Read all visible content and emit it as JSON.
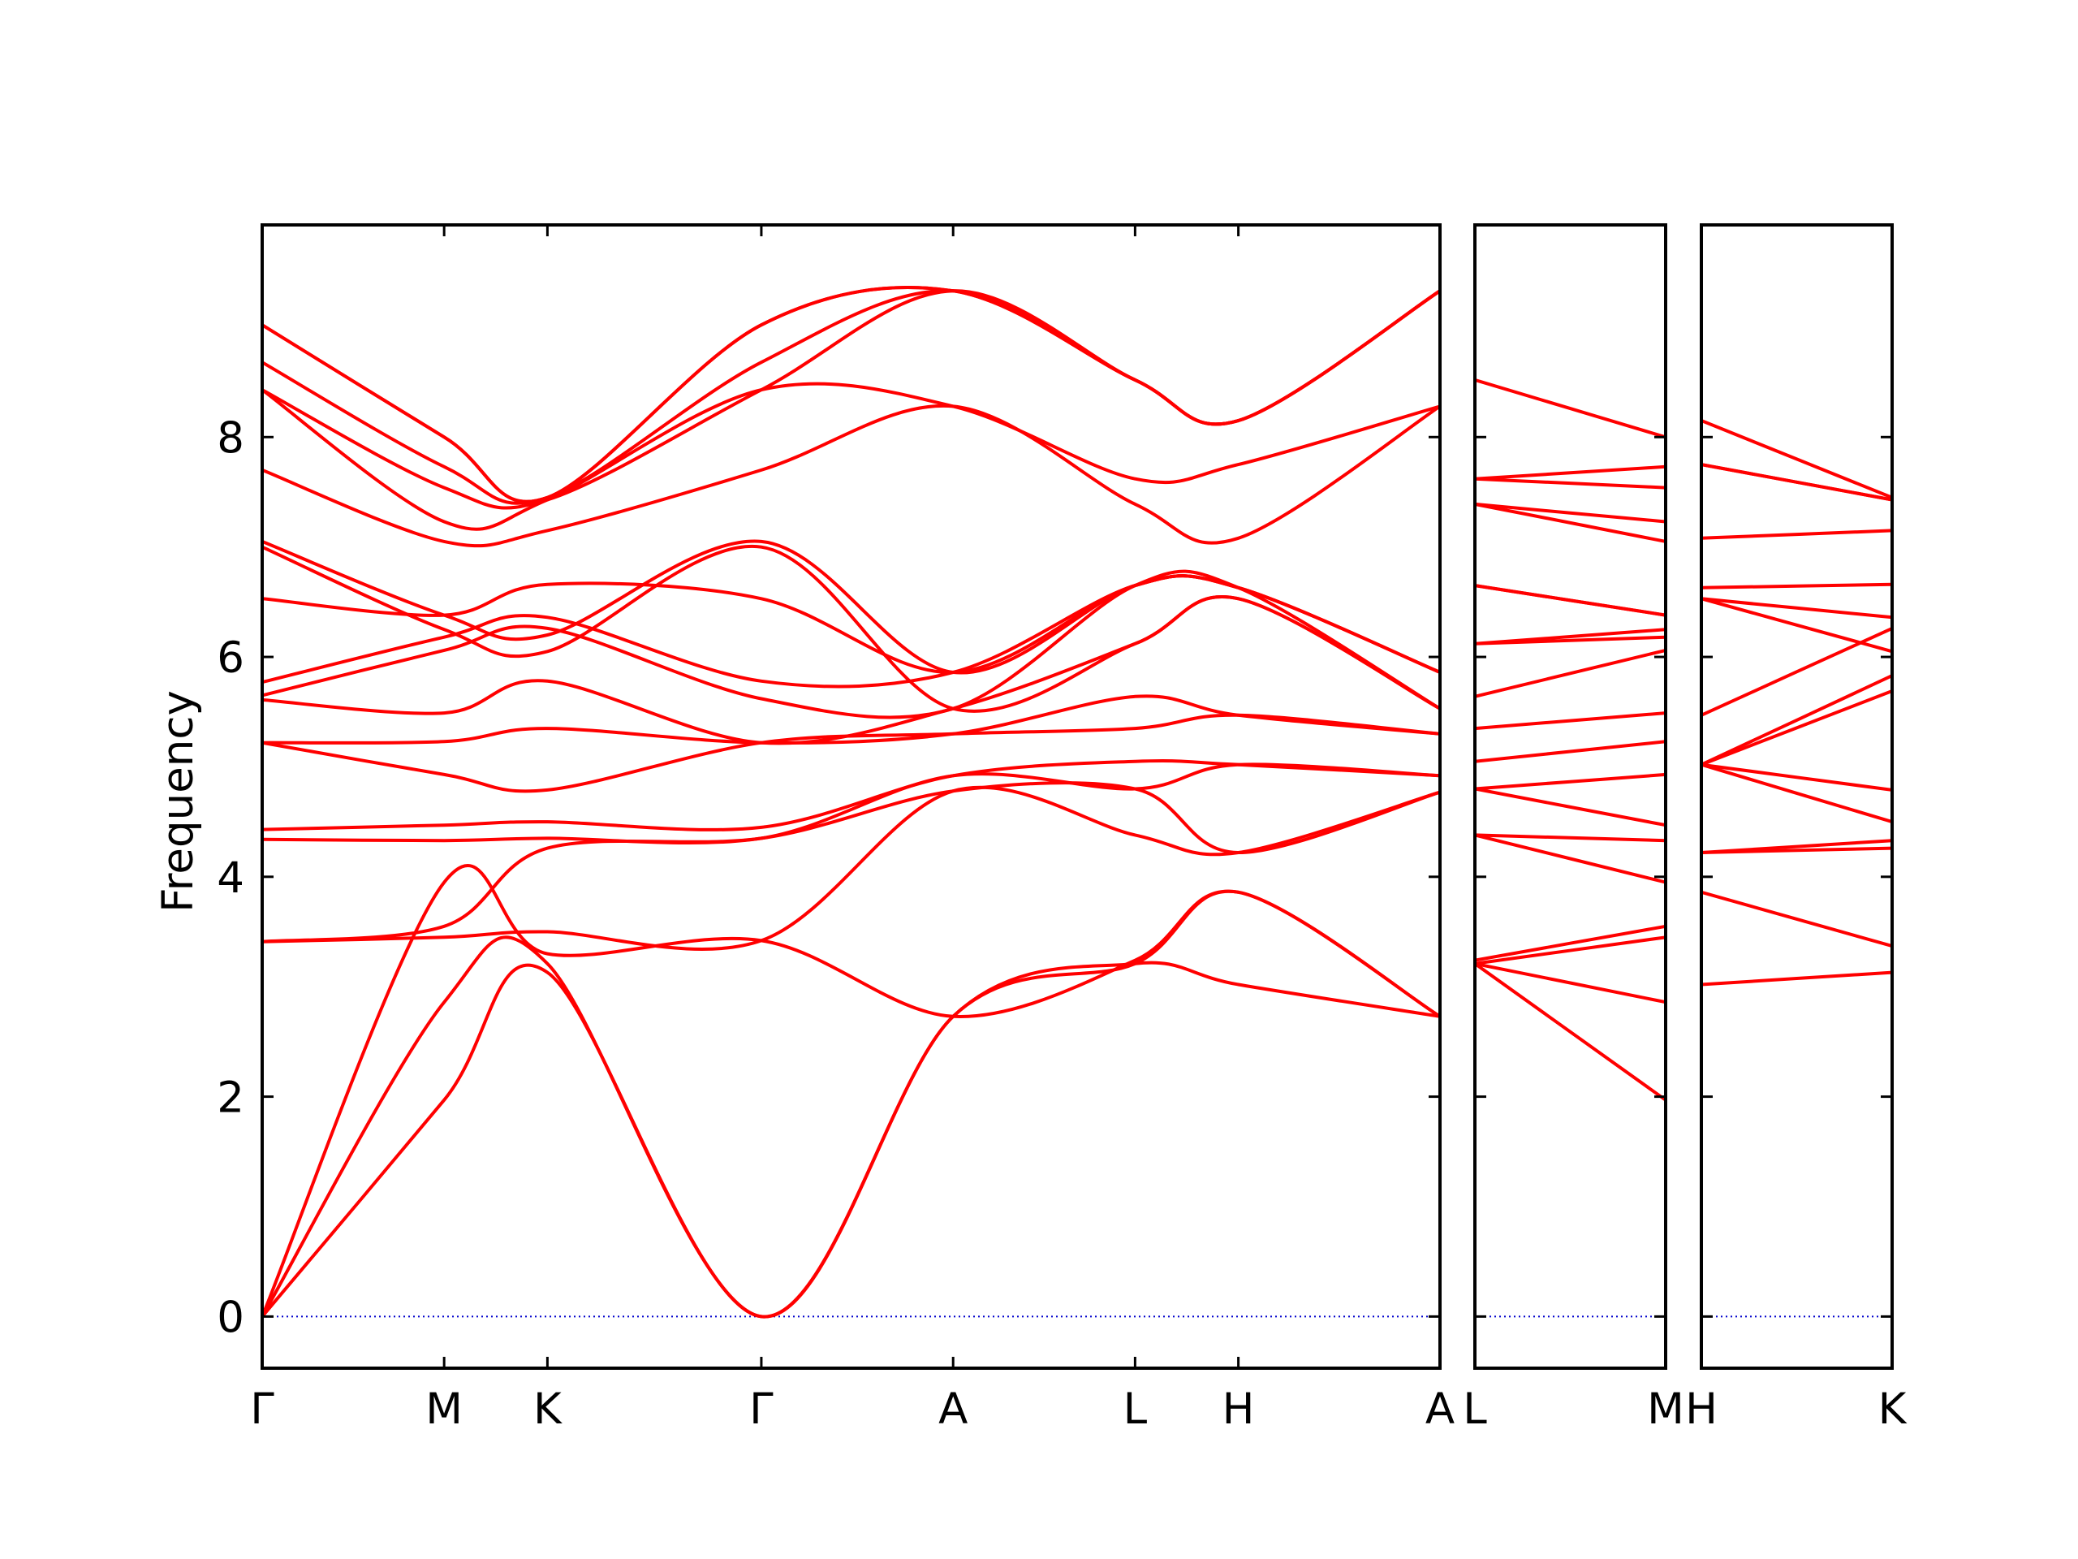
{
  "chart_data": {
    "type": "line",
    "ylabel": "Frequency",
    "ylim": [
      -0.47,
      9.93
    ],
    "yticks": [
      0,
      2,
      4,
      6,
      8
    ],
    "ytick_labels": [
      "0",
      "2",
      "4",
      "6",
      "8"
    ],
    "grid": false,
    "line_color": "#ff0000",
    "zero_line_color": "#0000cc",
    "panels": [
      {
        "segments": [
          "Γ-M",
          "M-K",
          "K-Γ",
          "Γ-A",
          "A-L",
          "L-H",
          "H-A"
        ],
        "x_range": [
          0,
          4.79
        ],
        "ticks": [
          {
            "x": 0.0,
            "label": "Γ"
          },
          {
            "x": 0.74,
            "label": "M"
          },
          {
            "x": 1.16,
            "label": "K"
          },
          {
            "x": 2.03,
            "label": "Γ"
          },
          {
            "x": 2.81,
            "label": "A"
          },
          {
            "x": 3.55,
            "label": "L"
          },
          {
            "x": 3.97,
            "label": "H"
          },
          {
            "x": 4.79,
            "label": "A"
          }
        ],
        "bands": [
          [
            [
              0,
              0
            ],
            [
              0.74,
              1.97
            ],
            [
              1.16,
              3.13
            ],
            [
              2.03,
              0
            ],
            [
              2.81,
              2.73
            ],
            [
              3.55,
              3.21
            ],
            [
              3.97,
              3.02
            ],
            [
              4.79,
              2.73
            ]
          ],
          [
            [
              0,
              0
            ],
            [
              0.74,
              2.86
            ],
            [
              1.16,
              3.21
            ],
            [
              2.03,
              0
            ],
            [
              2.81,
              2.73
            ],
            [
              3.55,
              3.21
            ],
            [
              3.97,
              3.86
            ],
            [
              4.79,
              2.73
            ]
          ],
          [
            [
              0,
              0
            ],
            [
              0.74,
              3.95
            ],
            [
              1.16,
              3.3
            ],
            [
              2.03,
              3.42
            ],
            [
              2.81,
              2.73
            ],
            [
              3.55,
              3.24
            ],
            [
              3.97,
              3.86
            ],
            [
              4.79,
              2.73
            ]
          ],
          [
            [
              0,
              3.41
            ],
            [
              0.74,
              3.45
            ],
            [
              1.16,
              3.5
            ],
            [
              2.03,
              3.42
            ],
            [
              2.81,
              4.78
            ],
            [
              3.55,
              4.38
            ],
            [
              3.97,
              4.22
            ],
            [
              4.79,
              4.77
            ]
          ],
          [
            [
              0,
              3.41
            ],
            [
              0.74,
              3.55
            ],
            [
              1.16,
              4.26
            ],
            [
              2.03,
              4.35
            ],
            [
              2.81,
              4.78
            ],
            [
              3.55,
              4.8
            ],
            [
              3.97,
              4.22
            ],
            [
              4.79,
              4.77
            ]
          ],
          [
            [
              0,
              4.34
            ],
            [
              0.74,
              4.33
            ],
            [
              1.16,
              4.35
            ],
            [
              2.03,
              4.35
            ],
            [
              2.81,
              4.92
            ],
            [
              3.55,
              4.8
            ],
            [
              3.97,
              5.02
            ],
            [
              4.79,
              4.92
            ]
          ],
          [
            [
              0,
              4.43
            ],
            [
              0.74,
              4.47
            ],
            [
              1.16,
              4.5
            ],
            [
              2.03,
              4.45
            ],
            [
              2.81,
              4.92
            ],
            [
              3.55,
              5.05
            ],
            [
              3.97,
              5.02
            ],
            [
              4.79,
              4.92
            ]
          ],
          [
            [
              0,
              5.22
            ],
            [
              0.74,
              4.93
            ],
            [
              1.16,
              4.79
            ],
            [
              2.03,
              5.22
            ],
            [
              2.81,
              5.3
            ],
            [
              3.55,
              5.35
            ],
            [
              3.97,
              5.47
            ],
            [
              4.79,
              5.3
            ]
          ],
          [
            [
              0,
              5.22
            ],
            [
              0.74,
              5.23
            ],
            [
              1.16,
              5.35
            ],
            [
              2.03,
              5.22
            ],
            [
              2.81,
              5.3
            ],
            [
              3.55,
              5.64
            ],
            [
              3.97,
              5.47
            ],
            [
              4.79,
              5.3
            ]
          ],
          [
            [
              0,
              5.61
            ],
            [
              0.74,
              5.49
            ],
            [
              1.16,
              5.78
            ],
            [
              2.03,
              5.22
            ],
            [
              2.81,
              5.53
            ],
            [
              3.55,
              6.12
            ],
            [
              3.97,
              6.53
            ],
            [
              4.79,
              5.53
            ]
          ],
          [
            [
              0,
              5.65
            ],
            [
              0.74,
              6.06
            ],
            [
              1.16,
              6.26
            ],
            [
              2.03,
              5.62
            ],
            [
              2.81,
              5.53
            ],
            [
              3.55,
              6.65
            ],
            [
              3.97,
              6.63
            ],
            [
              4.79,
              5.53
            ]
          ],
          [
            [
              0,
              5.77
            ],
            [
              0.74,
              6.18
            ],
            [
              1.16,
              6.36
            ],
            [
              2.03,
              5.78
            ],
            [
              2.81,
              5.86
            ],
            [
              3.55,
              6.65
            ],
            [
              3.97,
              6.63
            ],
            [
              4.79,
              5.86
            ]
          ],
          [
            [
              0,
              6.53
            ],
            [
              0.74,
              6.38
            ],
            [
              1.16,
              6.66
            ],
            [
              2.03,
              6.53
            ],
            [
              2.81,
              5.86
            ],
            [
              3.55,
              6.65
            ],
            [
              3.97,
              6.63
            ],
            [
              4.79,
              5.86
            ]
          ],
          [
            [
              0,
              7.05
            ],
            [
              0.74,
              6.38
            ],
            [
              1.16,
              6.2
            ],
            [
              2.03,
              7.05
            ],
            [
              2.81,
              5.86
            ],
            [
              3.55,
              6.65
            ],
            [
              3.97,
              6.63
            ],
            [
              4.79,
              5.86
            ]
          ],
          [
            [
              0,
              7.0
            ],
            [
              0.74,
              6.25
            ],
            [
              1.16,
              6.05
            ],
            [
              2.03,
              7.0
            ],
            [
              2.81,
              5.53
            ],
            [
              3.55,
              6.12
            ],
            [
              3.97,
              6.53
            ],
            [
              4.79,
              5.53
            ]
          ],
          [
            [
              0,
              7.7
            ],
            [
              0.74,
              7.05
            ],
            [
              1.16,
              7.15
            ],
            [
              2.03,
              7.7
            ],
            [
              2.81,
              8.28
            ],
            [
              3.55,
              7.39
            ],
            [
              3.97,
              7.08
            ],
            [
              4.79,
              8.28
            ]
          ],
          [
            [
              0,
              8.43
            ],
            [
              0.74,
              7.23
            ],
            [
              1.16,
              7.43
            ],
            [
              2.03,
              8.43
            ],
            [
              2.81,
              8.28
            ],
            [
              3.55,
              7.62
            ],
            [
              3.97,
              7.75
            ],
            [
              4.79,
              8.28
            ]
          ],
          [
            [
              0,
              8.43
            ],
            [
              0.74,
              7.54
            ],
            [
              1.16,
              7.43
            ],
            [
              2.03,
              8.43
            ],
            [
              2.81,
              9.33
            ],
            [
              3.55,
              8.52
            ],
            [
              3.97,
              8.15
            ],
            [
              4.79,
              9.33
            ]
          ],
          [
            [
              0,
              8.68
            ],
            [
              0.74,
              7.73
            ],
            [
              1.16,
              7.45
            ],
            [
              2.03,
              8.68
            ],
            [
              2.81,
              9.33
            ],
            [
              3.55,
              8.52
            ],
            [
              3.97,
              8.15
            ],
            [
              4.79,
              9.33
            ]
          ],
          [
            [
              0,
              9.02
            ],
            [
              0.74,
              8.0
            ],
            [
              1.16,
              7.45
            ],
            [
              2.03,
              9.02
            ],
            [
              2.81,
              9.33
            ],
            [
              3.55,
              8.52
            ],
            [
              3.97,
              8.15
            ],
            [
              4.79,
              9.33
            ]
          ],
          [
            [
              0,
              9.02
            ],
            [
              0.74,
              8.0
            ],
            [
              1.16,
              7.45
            ],
            [
              2.03,
              9.02
            ],
            [
              2.81,
              9.33
            ],
            [
              3.55,
              8.52
            ],
            [
              3.97,
              8.15
            ],
            [
              4.79,
              9.33
            ]
          ]
        ]
      },
      {
        "segments": [
          "L-M"
        ],
        "x_range": [
          0,
          0.78
        ],
        "ticks": [
          {
            "x": 0.0,
            "label": "L"
          },
          {
            "x": 0.78,
            "label": "M"
          }
        ],
        "bands": [
          [
            [
              0,
              3.21
            ],
            [
              0.78,
              1.97
            ]
          ],
          [
            [
              0,
              3.21
            ],
            [
              0.78,
              2.86
            ]
          ],
          [
            [
              0,
              3.21
            ],
            [
              0.78,
              3.45
            ]
          ],
          [
            [
              0,
              3.24
            ],
            [
              0.78,
              3.55
            ]
          ],
          [
            [
              0,
              4.38
            ],
            [
              0.78,
              3.95
            ]
          ],
          [
            [
              0,
              4.38
            ],
            [
              0.78,
              4.33
            ]
          ],
          [
            [
              0,
              4.8
            ],
            [
              0.78,
              4.47
            ]
          ],
          [
            [
              0,
              4.8
            ],
            [
              0.78,
              4.93
            ]
          ],
          [
            [
              0,
              5.05
            ],
            [
              0.78,
              5.23
            ]
          ],
          [
            [
              0,
              5.35
            ],
            [
              0.78,
              5.49
            ]
          ],
          [
            [
              0,
              5.64
            ],
            [
              0.78,
              6.06
            ]
          ],
          [
            [
              0,
              6.12
            ],
            [
              0.78,
              6.18
            ]
          ],
          [
            [
              0,
              6.12
            ],
            [
              0.78,
              6.25
            ]
          ],
          [
            [
              0,
              6.65
            ],
            [
              0.78,
              6.38
            ]
          ],
          [
            [
              0,
              6.65
            ],
            [
              0.78,
              6.38
            ]
          ],
          [
            [
              0,
              7.39
            ],
            [
              0.78,
              7.05
            ]
          ],
          [
            [
              0,
              7.39
            ],
            [
              0.78,
              7.23
            ]
          ],
          [
            [
              0,
              7.62
            ],
            [
              0.78,
              7.54
            ]
          ],
          [
            [
              0,
              7.62
            ],
            [
              0.78,
              7.73
            ]
          ],
          [
            [
              0,
              8.52
            ],
            [
              0.78,
              8.0
            ]
          ]
        ]
      },
      {
        "segments": [
          "H-K"
        ],
        "x_range": [
          0,
          0.78
        ],
        "ticks": [
          {
            "x": 0.0,
            "label": "H"
          },
          {
            "x": 0.78,
            "label": "K"
          }
        ],
        "bands": [
          [
            [
              0,
              3.02
            ],
            [
              0.78,
              3.13
            ]
          ],
          [
            [
              0,
              3.86
            ],
            [
              0.78,
              3.37
            ]
          ],
          [
            [
              0,
              4.22
            ],
            [
              0.78,
              4.26
            ]
          ],
          [
            [
              0,
              4.22
            ],
            [
              0.78,
              4.33
            ]
          ],
          [
            [
              0,
              5.02
            ],
            [
              0.78,
              4.5
            ]
          ],
          [
            [
              0,
              5.02
            ],
            [
              0.78,
              4.79
            ]
          ],
          [
            [
              0,
              5.02
            ],
            [
              0.78,
              5.69
            ]
          ],
          [
            [
              0,
              5.02
            ],
            [
              0.78,
              5.83
            ]
          ],
          [
            [
              0,
              5.47
            ],
            [
              0.78,
              6.26
            ]
          ],
          [
            [
              0,
              6.53
            ],
            [
              0.78,
              6.36
            ]
          ],
          [
            [
              0,
              6.53
            ],
            [
              0.78,
              6.05
            ]
          ],
          [
            [
              0,
              6.63
            ],
            [
              0.78,
              6.66
            ]
          ],
          [
            [
              0,
              7.08
            ],
            [
              0.78,
              7.15
            ]
          ],
          [
            [
              0,
              7.75
            ],
            [
              0.78,
              7.43
            ]
          ],
          [
            [
              0,
              7.75
            ],
            [
              0.78,
              7.43
            ]
          ],
          [
            [
              0,
              8.15
            ],
            [
              0.78,
              7.45
            ]
          ]
        ]
      }
    ]
  }
}
